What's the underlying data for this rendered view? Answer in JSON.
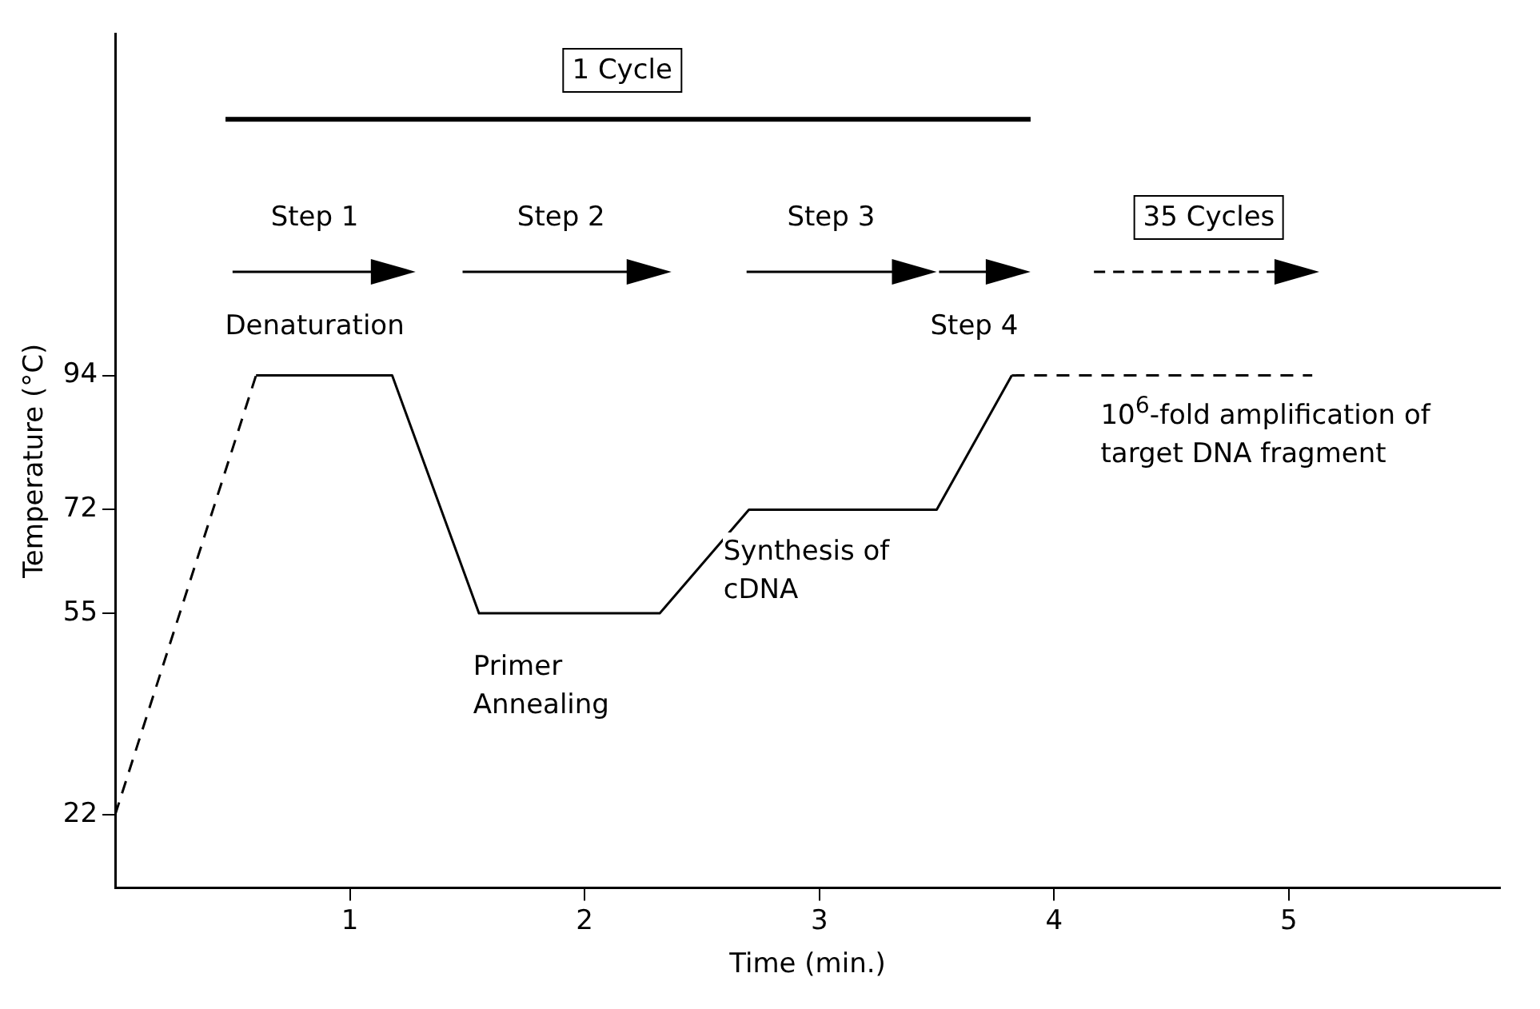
{
  "chart_data": {
    "type": "line",
    "xlabel": "Time (min.)",
    "ylabel": "Temperature (°C)",
    "xlim": [
      0,
      5.9
    ],
    "xticks": [
      1,
      2,
      3,
      4,
      5
    ],
    "ylim": [
      10,
      150
    ],
    "yticks": [
      22,
      55,
      72,
      94
    ],
    "grid": false,
    "legend": false,
    "marker": "none",
    "series": [
      {
        "color": "#000000",
        "line_style": "dashed",
        "x": [
          0,
          0.6
        ],
        "values": [
          22,
          94
        ]
      },
      {
        "color": "#000000",
        "line_style": "solid",
        "x": [
          0.6,
          1.18,
          1.55,
          2.32,
          2.7,
          3.5,
          3.82
        ],
        "values": [
          94,
          94,
          55,
          55,
          72,
          72,
          94
        ]
      },
      {
        "color": "#000000",
        "line_style": "dashed",
        "x": [
          3.82,
          5.1
        ],
        "values": [
          94,
          94
        ]
      }
    ],
    "annotations": [
      "1 Cycle",
      "Step 1",
      "Step 2",
      "Step 3",
      "35 Cycles",
      "Denaturation",
      "Step 4",
      "Primer Annealing",
      "Synthesis of cDNA",
      "10$^{6}$-fold amplification of target DNA fragment"
    ]
  }
}
